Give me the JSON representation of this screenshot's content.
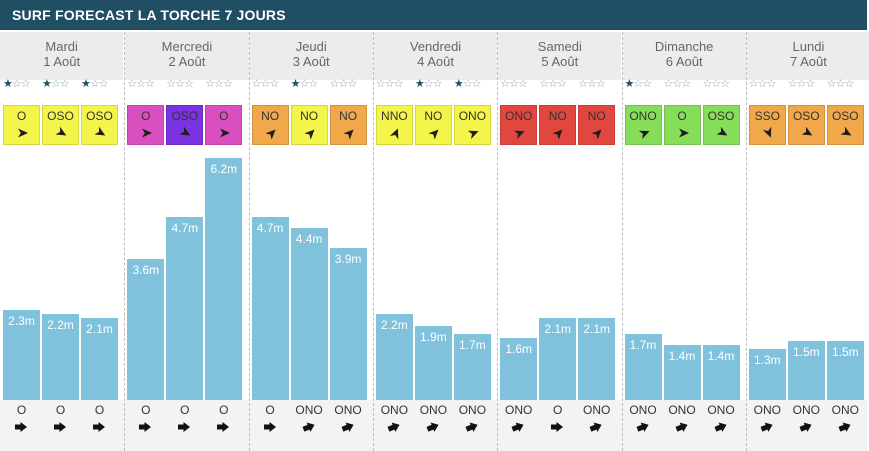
{
  "header": {
    "title": "SURF FORECAST LA TORCHE 7 JOURS"
  },
  "colors": {
    "header_bg": "#204e63",
    "bar": "#80c2dc",
    "wind_yellow": "#f3f54a",
    "wind_magenta": "#da4fc0",
    "wind_purple": "#7a33e0",
    "wind_orange": "#f0a84a",
    "wind_red": "#e2473f",
    "wind_green": "#86dd5a"
  },
  "chart_data": {
    "type": "bar",
    "unit": "m",
    "ylim": [
      0,
      6.2
    ],
    "days": [
      {
        "name": "Mardi",
        "date": "1 Août",
        "slots": [
          {
            "stars": 1,
            "wind_dir": "O",
            "wind_color": "wind_yellow",
            "wind_angle": 90,
            "wave": 2.3,
            "wave_label": "2.3m",
            "swell_dir": "O",
            "swell_angle": 90
          },
          {
            "stars": 1,
            "wind_dir": "OSO",
            "wind_color": "wind_yellow",
            "wind_angle": 60,
            "wave": 2.2,
            "wave_label": "2.2m",
            "swell_dir": "O",
            "swell_angle": 90
          },
          {
            "stars": 1,
            "wind_dir": "OSO",
            "wind_color": "wind_yellow",
            "wind_angle": 60,
            "wave": 2.1,
            "wave_label": "2.1m",
            "swell_dir": "O",
            "swell_angle": 90
          }
        ]
      },
      {
        "name": "Mercredi",
        "date": "2 Août",
        "slots": [
          {
            "stars": 0,
            "wind_dir": "O",
            "wind_color": "wind_magenta",
            "wind_angle": 90,
            "wave": 3.6,
            "wave_label": "3.6m",
            "swell_dir": "O",
            "swell_angle": 90
          },
          {
            "stars": 0,
            "wind_dir": "OSO",
            "wind_color": "wind_purple",
            "wind_angle": 60,
            "wave": 4.7,
            "wave_label": "4.7m",
            "swell_dir": "O",
            "swell_angle": 90
          },
          {
            "stars": 0,
            "wind_dir": "O",
            "wind_color": "wind_magenta",
            "wind_angle": 90,
            "wave": 6.2,
            "wave_label": "6.2m",
            "swell_dir": "O",
            "swell_angle": 90
          }
        ]
      },
      {
        "name": "Jeudi",
        "date": "3 Août",
        "slots": [
          {
            "stars": 0,
            "wind_dir": "NO",
            "wind_color": "wind_orange",
            "wind_angle": 135,
            "wave": 4.7,
            "wave_label": "4.7m",
            "swell_dir": "O",
            "swell_angle": 90
          },
          {
            "stars": 1,
            "wind_dir": "NO",
            "wind_color": "wind_yellow",
            "wind_angle": 135,
            "wave": 4.4,
            "wave_label": "4.4m",
            "swell_dir": "ONO",
            "swell_angle": 112
          },
          {
            "stars": 0,
            "wind_dir": "NO",
            "wind_color": "wind_orange",
            "wind_angle": 135,
            "wave": 3.9,
            "wave_label": "3.9m",
            "swell_dir": "ONO",
            "swell_angle": 112
          }
        ]
      },
      {
        "name": "Vendredi",
        "date": "4 Août",
        "slots": [
          {
            "stars": 0,
            "wind_dir": "NNO",
            "wind_color": "wind_yellow",
            "wind_angle": 158,
            "wave": 2.2,
            "wave_label": "2.2m",
            "swell_dir": "ONO",
            "swell_angle": 112
          },
          {
            "stars": 1,
            "wind_dir": "NO",
            "wind_color": "wind_yellow",
            "wind_angle": 135,
            "wave": 1.9,
            "wave_label": "1.9m",
            "swell_dir": "ONO",
            "swell_angle": 112
          },
          {
            "stars": 1,
            "wind_dir": "ONO",
            "wind_color": "wind_yellow",
            "wind_angle": 112,
            "wave": 1.7,
            "wave_label": "1.7m",
            "swell_dir": "ONO",
            "swell_angle": 112
          }
        ]
      },
      {
        "name": "Samedi",
        "date": "5 Août",
        "slots": [
          {
            "stars": 0,
            "wind_dir": "ONO",
            "wind_color": "wind_red",
            "wind_angle": 112,
            "wave": 1.6,
            "wave_label": "1.6m",
            "swell_dir": "ONO",
            "swell_angle": 112
          },
          {
            "stars": 0,
            "wind_dir": "NO",
            "wind_color": "wind_red",
            "wind_angle": 135,
            "wave": 2.1,
            "wave_label": "2.1m",
            "swell_dir": "O",
            "swell_angle": 90
          },
          {
            "stars": 0,
            "wind_dir": "NO",
            "wind_color": "wind_red",
            "wind_angle": 135,
            "wave": 2.1,
            "wave_label": "2.1m",
            "swell_dir": "ONO",
            "swell_angle": 112
          }
        ]
      },
      {
        "name": "Dimanche",
        "date": "6 Août",
        "slots": [
          {
            "stars": 1,
            "wind_dir": "ONO",
            "wind_color": "wind_green",
            "wind_angle": 112,
            "wave": 1.7,
            "wave_label": "1.7m",
            "swell_dir": "ONO",
            "swell_angle": 112
          },
          {
            "stars": 0,
            "wind_dir": "O",
            "wind_color": "wind_green",
            "wind_angle": 90,
            "wave": 1.4,
            "wave_label": "1.4m",
            "swell_dir": "ONO",
            "swell_angle": 112
          },
          {
            "stars": 0,
            "wind_dir": "OSO",
            "wind_color": "wind_green",
            "wind_angle": 60,
            "wave": 1.4,
            "wave_label": "1.4m",
            "swell_dir": "ONO",
            "swell_angle": 112
          }
        ]
      },
      {
        "name": "Lundi",
        "date": "7 Août",
        "slots": [
          {
            "stars": 0,
            "wind_dir": "SSO",
            "wind_color": "wind_orange",
            "wind_angle": 22,
            "wave": 1.3,
            "wave_label": "1.3m",
            "swell_dir": "ONO",
            "swell_angle": 112
          },
          {
            "stars": 0,
            "wind_dir": "OSO",
            "wind_color": "wind_orange",
            "wind_angle": 60,
            "wave": 1.5,
            "wave_label": "1.5m",
            "swell_dir": "ONO",
            "swell_angle": 112
          },
          {
            "stars": 0,
            "wind_dir": "OSO",
            "wind_color": "wind_orange",
            "wind_angle": 60,
            "wave": 1.5,
            "wave_label": "1.5m",
            "swell_dir": "ONO",
            "swell_angle": 112
          }
        ]
      }
    ]
  }
}
